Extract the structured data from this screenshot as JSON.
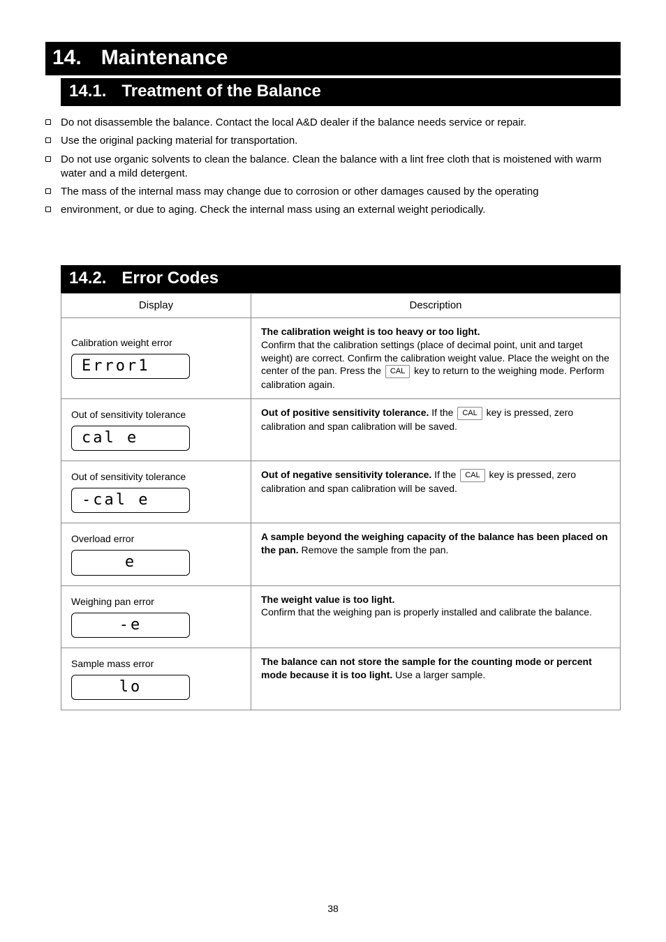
{
  "page": {
    "number": "38"
  },
  "h1": {
    "num": "14.",
    "title": "Maintenance"
  },
  "h2a": {
    "num": "14.1.",
    "title": "Treatment of the Balance"
  },
  "bullets": [
    "Do not disassemble the balance. Contact the local A&D dealer if the balance needs service or repair.",
    "Use the original packing material for transportation.",
    "Do not use organic solvents to clean the balance. Clean the balance with a lint free cloth that is moistened with warm water and a mild detergent.",
    "The mass of the internal mass may change due to corrosion or other damages caused by the operating environment, or due to aging. Check the internal mass using an external weight periodically."
  ],
  "bullets_split": {
    "b0": "Do not disassemble the balance. Contact the local A&D dealer if the balance needs service or repair.",
    "b1": "Use the original packing material for transportation.",
    "b2": "Do not use organic solvents to clean the balance. Clean the balance with a lint free cloth that is moistened with warm water and a mild detergent.",
    "b3_l1": "The mass of the internal mass may change due to corrosion or other damages caused by the operating",
    "b3_l2": "environment, or due to aging. Check the internal mass using an external weight periodically."
  },
  "h2b": {
    "num": "14.2.",
    "title": "Error Codes"
  },
  "table": {
    "head": {
      "a": "Display",
      "b": "Description"
    },
    "rows": [
      {
        "name": "Calibration weight error",
        "disp": "Error1",
        "disp_class": "",
        "desc_html": "<b>The calibration weight is too heavy or too light.</b><br>Confirm that the calibration settings (place of decimal point, unit and target weight) are correct. Confirm the calibration weight value. Place the weight on the center of the pan. Press the <span class=\"key-box\">CAL</span> key to return to the weighing mode. Perform calibration again."
      },
      {
        "name": "Out of sensitivity tolerance",
        "disp": "cal e",
        "disp_class": "",
        "desc_html": "<b>Out of positive sensitivity tolerance.</b> If the <span class=\"key-box\">CAL</span> key is pressed, zero calibration and span calibration will be saved."
      },
      {
        "name": "Out of sensitivity tolerance",
        "disp": "-cal e",
        "disp_class": "",
        "desc_html": "<b>Out of negative sensitivity tolerance.</b> If the <span class=\"key-box\">CAL</span> key is pressed, zero calibration and span calibration will be saved."
      },
      {
        "name": "Overload error",
        "disp": "e",
        "disp_class": "center",
        "desc_html": "<b>A sample beyond the weighing capacity of the balance has been placed on the pan.</b> Remove the sample from the pan."
      },
      {
        "name": "Weighing pan error",
        "disp": "-e",
        "disp_class": "center",
        "desc_html": "<b>The weight value is too light.</b><br>Confirm that the weighing pan is properly installed and calibrate the balance."
      },
      {
        "name": "Sample mass error",
        "disp": "lo",
        "disp_class": "center",
        "desc_html": "<b>The balance can not store the sample for the counting mode or percent mode because it is too light.</b> Use a larger sample."
      }
    ]
  },
  "keys": {
    "cal": "CAL"
  }
}
